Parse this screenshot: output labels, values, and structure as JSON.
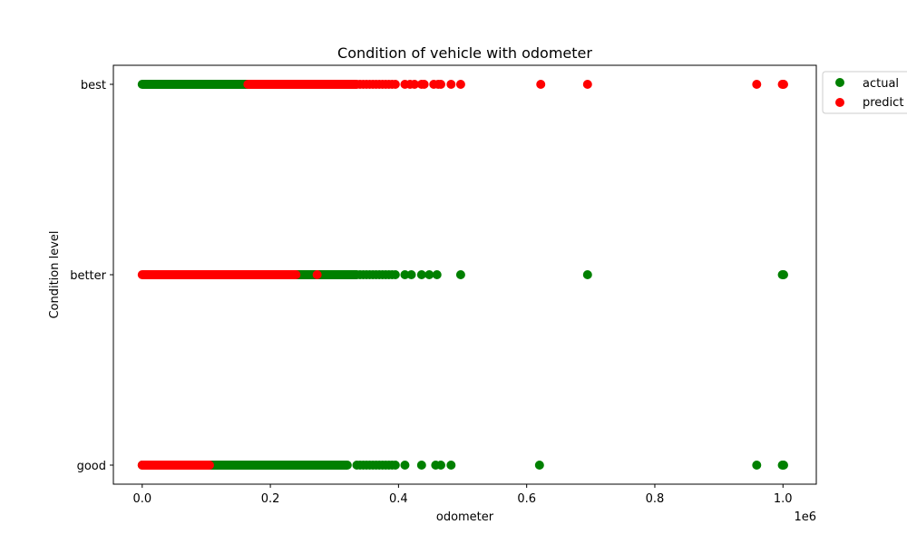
{
  "chart_data": {
    "type": "scatter",
    "title": "Condition of vehicle with odometer",
    "xlabel": "odometer",
    "ylabel": "Condition level",
    "x_offset_label": "1e6",
    "xlim": [
      -0.045,
      1.052
    ],
    "x_ticks": [
      0.0,
      0.2,
      0.4,
      0.6,
      0.8,
      1.0
    ],
    "x_tick_labels": [
      "0.0",
      "0.2",
      "0.4",
      "0.6",
      "0.8",
      "1.0"
    ],
    "categories": [
      "good",
      "better",
      "best"
    ],
    "legend_position": "outside-top-right",
    "grid": false,
    "series": [
      {
        "name": "actual",
        "color": "#008000",
        "ranges": [
          {
            "category": "good",
            "from": 0.0,
            "to": 0.32
          },
          {
            "category": "better",
            "from": 0.24,
            "to": 0.335
          },
          {
            "category": "best",
            "from": 0.0,
            "to": 0.165
          }
        ],
        "points": [
          {
            "category": "good",
            "x": [
              0.335,
              0.34,
              0.345,
              0.35,
              0.355,
              0.36,
              0.365,
              0.37,
              0.375,
              0.38,
              0.385,
              0.39,
              0.395,
              0.41,
              0.436,
              0.458,
              0.466,
              0.482,
              0.62,
              0.959,
              0.999,
              1.0,
              1.001
            ]
          },
          {
            "category": "better",
            "from_note": "",
            "x": [
              0.34,
              0.345,
              0.35,
              0.355,
              0.36,
              0.365,
              0.37,
              0.375,
              0.38,
              0.385,
              0.39,
              0.395,
              0.41,
              0.42,
              0.436,
              0.448,
              0.46,
              0.497,
              0.695,
              0.999,
              1.0,
              1.001
            ]
          },
          {
            "category": "best",
            "x": []
          }
        ]
      },
      {
        "name": "predict",
        "color": "#ff0000",
        "ranges": [
          {
            "category": "good",
            "from": 0.0,
            "to": 0.105
          },
          {
            "category": "better",
            "from": 0.0,
            "to": 0.24
          },
          {
            "category": "best",
            "from": 0.165,
            "to": 0.335
          }
        ],
        "points": [
          {
            "category": "good",
            "x": []
          },
          {
            "category": "better",
            "x": [
              0.273
            ]
          },
          {
            "category": "best",
            "x": [
              0.34,
              0.345,
              0.35,
              0.355,
              0.36,
              0.365,
              0.37,
              0.375,
              0.38,
              0.385,
              0.39,
              0.395,
              0.41,
              0.418,
              0.425,
              0.436,
              0.44,
              0.455,
              0.462,
              0.466,
              0.482,
              0.497,
              0.622,
              0.695,
              0.959,
              0.999,
              1.0,
              1.001
            ]
          }
        ]
      }
    ]
  }
}
